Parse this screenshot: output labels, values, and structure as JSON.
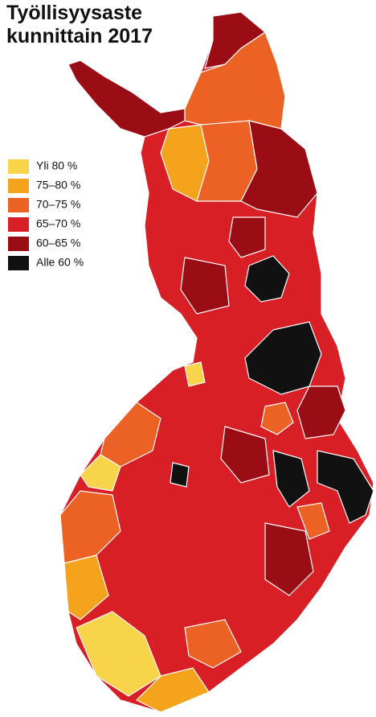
{
  "title": [
    "Työllisyysaste",
    "kunnittain 2017"
  ],
  "legend": [
    {
      "label": "Yli 80 %",
      "color": "#f7d44a"
    },
    {
      "label": "75–80 %",
      "color": "#f5a21c"
    },
    {
      "label": "70–75 %",
      "color": "#ec6224"
    },
    {
      "label": "65–70 %",
      "color": "#d81f26"
    },
    {
      "label": "60–65 %",
      "color": "#9b0d14"
    },
    {
      "label": "Alle 60 %",
      "color": "#111111"
    }
  ]
}
